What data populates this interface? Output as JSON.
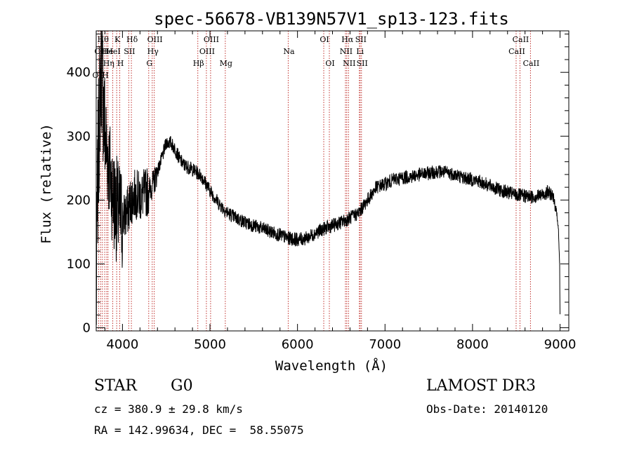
{
  "chart_data": {
    "type": "line",
    "title": "spec-56678-VB139N57V1_sp13-123.fits",
    "xlabel": "Wavelength (Å)",
    "ylabel": "Flux (relative)",
    "xlim": [
      3700,
      9100
    ],
    "ylim": [
      -5,
      465
    ],
    "xticks": [
      4000,
      5000,
      6000,
      7000,
      8000,
      9000
    ],
    "yticks": [
      0,
      100,
      200,
      300,
      400
    ],
    "xminor_step": 200,
    "yminor_step": 20,
    "series": [
      {
        "name": "flux",
        "anchors": [
          [
            3700,
            20
          ],
          [
            3710,
            150
          ],
          [
            3720,
            250
          ],
          [
            3740,
            350
          ],
          [
            3760,
            420
          ],
          [
            3780,
            360
          ],
          [
            3800,
            300
          ],
          [
            3850,
            250
          ],
          [
            3900,
            200
          ],
          [
            3950,
            180
          ],
          [
            4000,
            170
          ],
          [
            4050,
            180
          ],
          [
            4100,
            200
          ],
          [
            4150,
            210
          ],
          [
            4200,
            205
          ],
          [
            4250,
            210
          ],
          [
            4300,
            215
          ],
          [
            4350,
            225
          ],
          [
            4400,
            245
          ],
          [
            4450,
            265
          ],
          [
            4500,
            290
          ],
          [
            4550,
            290
          ],
          [
            4600,
            280
          ],
          [
            4650,
            265
          ],
          [
            4700,
            255
          ],
          [
            4800,
            248
          ],
          [
            4900,
            238
          ],
          [
            5000,
            215
          ],
          [
            5100,
            195
          ],
          [
            5200,
            180
          ],
          [
            5300,
            172
          ],
          [
            5400,
            165
          ],
          [
            5500,
            160
          ],
          [
            5600,
            155
          ],
          [
            5700,
            150
          ],
          [
            5800,
            145
          ],
          [
            5900,
            140
          ],
          [
            6000,
            138
          ],
          [
            6100,
            140
          ],
          [
            6200,
            148
          ],
          [
            6300,
            155
          ],
          [
            6400,
            160
          ],
          [
            6500,
            165
          ],
          [
            6600,
            172
          ],
          [
            6700,
            180
          ],
          [
            6800,
            200
          ],
          [
            6900,
            220
          ],
          [
            7000,
            225
          ],
          [
            7100,
            232
          ],
          [
            7200,
            235
          ],
          [
            7300,
            237
          ],
          [
            7400,
            240
          ],
          [
            7500,
            242
          ],
          [
            7600,
            245
          ],
          [
            7700,
            243
          ],
          [
            7800,
            240
          ],
          [
            7900,
            235
          ],
          [
            8000,
            232
          ],
          [
            8100,
            228
          ],
          [
            8200,
            222
          ],
          [
            8300,
            216
          ],
          [
            8400,
            212
          ],
          [
            8500,
            208
          ],
          [
            8600,
            206
          ],
          [
            8700,
            205
          ],
          [
            8800,
            208
          ],
          [
            8850,
            212
          ],
          [
            8900,
            210
          ],
          [
            8950,
            190
          ],
          [
            8980,
            160
          ],
          [
            8995,
            100
          ],
          [
            9000,
            20
          ]
        ]
      }
    ],
    "lines": [
      {
        "wave": 3727,
        "label": "OII",
        "row": 3,
        "dx": -1
      },
      {
        "wave": 3750,
        "label": "OII",
        "row": 1,
        "dx": -1
      },
      {
        "wave": 3770,
        "label": "Hθ",
        "row": 0
      },
      {
        "wave": 3797,
        "label": "H",
        "row": 3
      },
      {
        "wave": 3820,
        "label": "He",
        "row": 1
      },
      {
        "wave": 3835,
        "label": "Hη",
        "row": 2
      },
      {
        "wave": 3889,
        "label": "HeI",
        "row": 1
      },
      {
        "wave": 3934,
        "label": "K",
        "row": 0
      },
      {
        "wave": 3969,
        "label": "H",
        "row": 2
      },
      {
        "wave": 4072,
        "label": "SII",
        "row": 1
      },
      {
        "wave": 4102,
        "label": "Hδ",
        "row": 0
      },
      {
        "wave": 4300,
        "label": "G",
        "row": 2
      },
      {
        "wave": 4340,
        "label": "Hγ",
        "row": 1
      },
      {
        "wave": 4363,
        "label": "OIII",
        "row": 0
      },
      {
        "wave": 4861,
        "label": "Hβ",
        "row": 2
      },
      {
        "wave": 4959,
        "label": "OIII",
        "row": 1
      },
      {
        "wave": 5007,
        "label": "OIII",
        "row": 0
      },
      {
        "wave": 5175,
        "label": "Mg",
        "row": 2
      },
      {
        "wave": 5894,
        "label": "Na",
        "row": 1
      },
      {
        "wave": 6300,
        "label": "OI",
        "row": 0
      },
      {
        "wave": 6364,
        "label": "OI",
        "row": 2
      },
      {
        "wave": 6548,
        "label": "NII",
        "row": 1
      },
      {
        "wave": 6563,
        "label": "Hα",
        "row": 0
      },
      {
        "wave": 6583,
        "label": "NII",
        "row": 2
      },
      {
        "wave": 6707,
        "label": "Li",
        "row": 1
      },
      {
        "wave": 6716,
        "label": "SII",
        "row": 0
      },
      {
        "wave": 6731,
        "label": "SII",
        "row": 2
      },
      {
        "wave": 8498,
        "label": "CaII",
        "row": 1
      },
      {
        "wave": 8542,
        "label": "CaII",
        "row": 0
      },
      {
        "wave": 8662,
        "label": "CaII",
        "row": 2
      }
    ]
  },
  "info": {
    "class": "STAR",
    "subclass": "G0",
    "cz": "cz = 380.9 ± 29.8 km/s",
    "radec": "RA = 142.99634, DEC =  58.55075",
    "survey": "LAMOST DR3",
    "obsdate": "Obs-Date: 20140120"
  },
  "colors": {
    "axis": "#000000",
    "spectrum": "#000000",
    "line_marker": "#c0302c"
  }
}
